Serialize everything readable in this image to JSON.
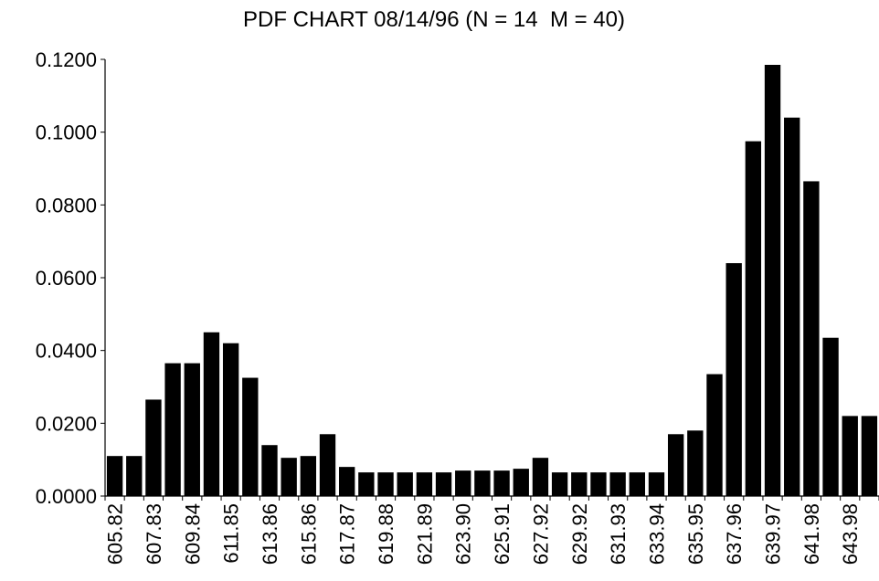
{
  "chart_data": {
    "type": "bar",
    "title": "PDF CHART 08/14/96 (N = 14  M = 40)",
    "xlabel": "",
    "ylabel": "",
    "ylim": [
      0,
      0.12
    ],
    "y_ticks": [
      "0.0000",
      "0.0200",
      "0.0400",
      "0.0600",
      "0.0800",
      "0.1000",
      "0.1200"
    ],
    "y_tick_values": [
      0,
      0.02,
      0.04,
      0.06,
      0.08,
      0.1,
      0.12
    ],
    "x_tick_labels": [
      "605.82",
      "607.83",
      "609.84",
      "611.85",
      "613.86",
      "615.86",
      "617.87",
      "619.88",
      "621.89",
      "623.90",
      "625.91",
      "627.92",
      "629.92",
      "631.93",
      "633.94",
      "635.95",
      "637.96",
      "639.97",
      "641.98",
      "643.98"
    ],
    "categories": [
      "605.82",
      "",
      "607.83",
      "",
      "609.84",
      "",
      "611.85",
      "",
      "613.86",
      "",
      "615.86",
      "",
      "617.87",
      "",
      "619.88",
      "",
      "621.89",
      "",
      "623.90",
      "",
      "625.91",
      "",
      "627.92",
      "",
      "629.92",
      "",
      "631.93",
      "",
      "633.94",
      "",
      "635.95",
      "",
      "637.96",
      "",
      "639.97",
      "",
      "641.98",
      "",
      "643.98",
      ""
    ],
    "values": [
      0.011,
      0.011,
      0.0265,
      0.0365,
      0.0365,
      0.045,
      0.042,
      0.0325,
      0.014,
      0.0105,
      0.011,
      0.017,
      0.008,
      0.0065,
      0.0065,
      0.0065,
      0.0065,
      0.0065,
      0.007,
      0.007,
      0.007,
      0.0075,
      0.0105,
      0.0065,
      0.0065,
      0.0065,
      0.0065,
      0.0065,
      0.0065,
      0.017,
      0.018,
      0.0335,
      0.064,
      0.0975,
      0.1185,
      0.104,
      0.0865,
      0.0435,
      0.022,
      0.022
    ],
    "bar_color": "#000000",
    "grid": false,
    "legend": "none"
  }
}
